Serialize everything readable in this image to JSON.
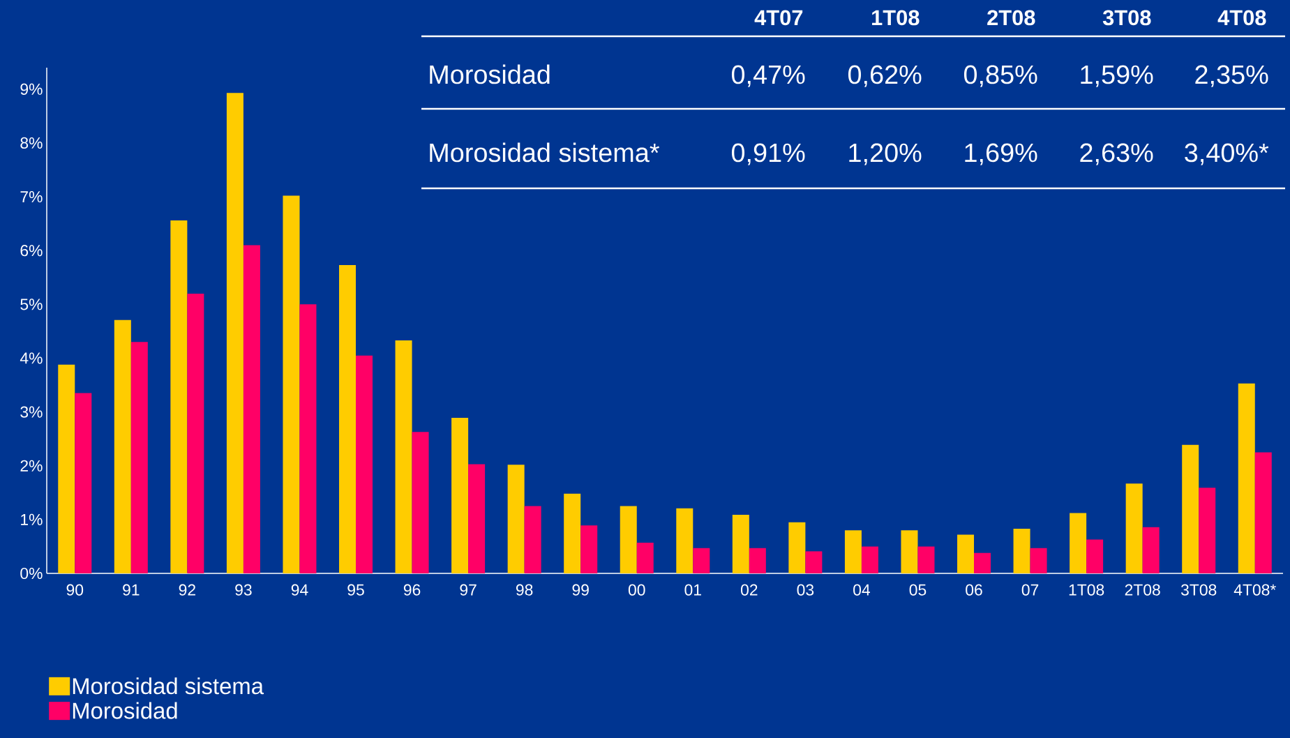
{
  "chart_data": {
    "type": "bar",
    "categories": [
      "90",
      "91",
      "92",
      "93",
      "94",
      "95",
      "96",
      "97",
      "98",
      "99",
      "00",
      "01",
      "02",
      "03",
      "04",
      "05",
      "06",
      "07",
      "1T08",
      "2T08",
      "3T08",
      "4T08*"
    ],
    "series": [
      {
        "name": "Morosidad sistema",
        "color": "#ffcc00",
        "values": [
          3.88,
          4.71,
          6.56,
          8.93,
          7.02,
          5.73,
          4.33,
          2.89,
          2.02,
          1.48,
          1.25,
          1.21,
          1.09,
          0.95,
          0.8,
          0.8,
          0.72,
          0.83,
          1.12,
          1.67,
          2.39,
          3.53
        ]
      },
      {
        "name": "Morosidad",
        "color": "#ff0066",
        "values": [
          3.35,
          4.3,
          5.2,
          6.1,
          5.0,
          4.05,
          2.63,
          2.03,
          1.25,
          0.89,
          0.57,
          0.47,
          0.47,
          0.41,
          0.5,
          0.5,
          0.38,
          0.47,
          0.63,
          0.86,
          1.59,
          2.25
        ]
      }
    ],
    "ylim": [
      0,
      9.4
    ],
    "yticks": [
      {
        "value": 0,
        "label": "0%"
      },
      {
        "value": 1,
        "label": "1%"
      },
      {
        "value": 2,
        "label": "2%"
      },
      {
        "value": 3,
        "label": "3%"
      },
      {
        "value": 4,
        "label": "4%"
      },
      {
        "value": 5,
        "label": "5%"
      },
      {
        "value": 6,
        "label": "6%"
      },
      {
        "value": 7,
        "label": "7%"
      },
      {
        "value": 8,
        "label": "8%"
      },
      {
        "value": 9,
        "label": "9%"
      }
    ],
    "grid": false,
    "legend": "bottom left",
    "annotations": [
      "4T07",
      "1T08",
      "2T08",
      "3T08",
      "4T08",
      "Morosidad",
      "0,47%",
      "0,62%",
      "0,85%",
      "1,59%",
      "2,35%",
      "Morosidad sistema*",
      "0,91%",
      "1,20%",
      "1,69%",
      "2,63%",
      "3,40%*"
    ]
  }
}
